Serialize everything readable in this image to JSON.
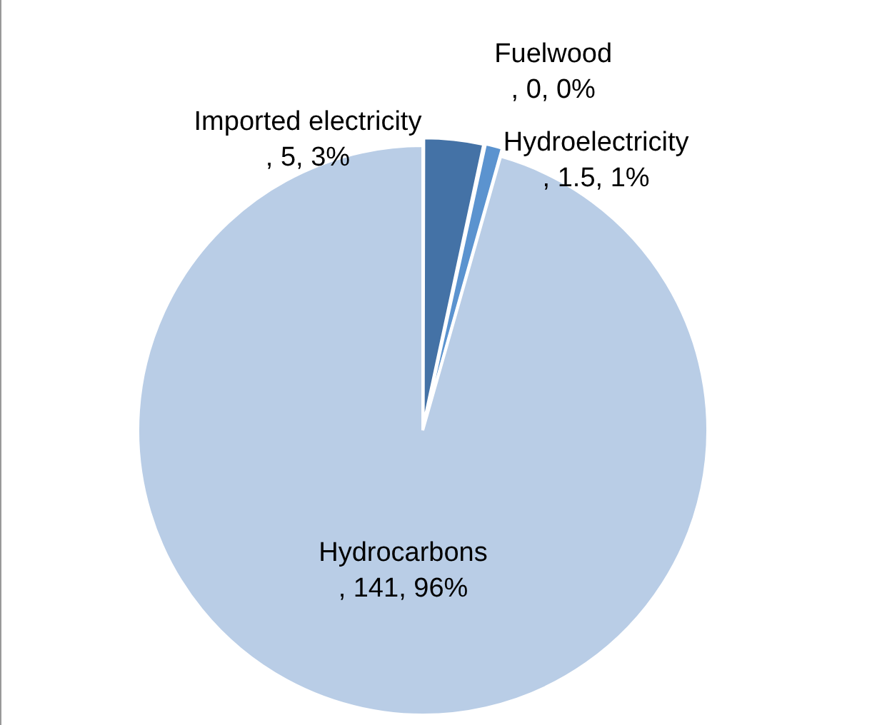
{
  "chart_data": {
    "type": "pie",
    "categories": [
      "Imported electricity",
      "Fuelwood",
      "Hydroelectricity",
      "Hydrocarbons"
    ],
    "values": [
      5,
      0,
      1.5,
      141
    ],
    "colors": [
      "#4472a6",
      "#95b3d7",
      "#5b93cf",
      "#b9cde6"
    ],
    "value_labels": [
      ", 5, 3%",
      ", 0, 0%",
      ", 1.5, 1%",
      ", 141, 96%"
    ],
    "legend": false
  }
}
